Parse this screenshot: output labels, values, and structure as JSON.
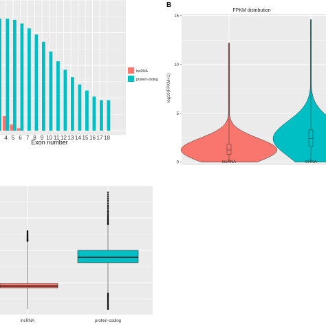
{
  "colors": {
    "lncRNA": "#F8766D",
    "protein_coding": "#00BFC4",
    "panel_bg": "#EBEBEB",
    "grid": "#FFFFFF"
  },
  "chart_data": [
    {
      "type": "bar",
      "xlabel": "Exon number",
      "ylabel": "",
      "categories": [
        "4",
        "5",
        "6",
        "7",
        "8",
        "9",
        "10",
        "11",
        "12",
        "13",
        "14",
        "15",
        "16",
        "17",
        "18"
      ],
      "legend": {
        "placement": "right",
        "entries": [
          "lncRNA",
          "protein-coding"
        ]
      },
      "grid": true,
      "series": [
        {
          "name": "lncRNA",
          "values": [
            0.12,
            0.05,
            0.02,
            null,
            null,
            null,
            null,
            null,
            null,
            null,
            null,
            null,
            null,
            null,
            null
          ]
        },
        {
          "name": "protein-coding",
          "values": [
            0.92,
            0.91,
            0.88,
            0.84,
            0.79,
            0.73,
            0.65,
            0.57,
            0.5,
            0.44,
            0.38,
            0.33,
            0.28,
            0.25,
            0.25
          ]
        }
      ]
    },
    {
      "type": "violin",
      "panel_label": "B",
      "title": "FPKM distribution",
      "ylabel": "log10(FPKM+1)",
      "categories": [
        "lncRNA",
        "mRNA"
      ],
      "ylim": [
        -0.3,
        15.2
      ],
      "yticks": [
        "0",
        "5",
        "10",
        "15"
      ],
      "grid": true,
      "series": [
        {
          "name": "lncRNA",
          "q1": 0.8,
          "median": 1.25,
          "q3": 1.85,
          "whisker_low": 0,
          "whisker_high": 12.2
        },
        {
          "name": "mRNA",
          "q1": 1.6,
          "median": 2.4,
          "q3": 3.3,
          "whisker_low": 0,
          "whisker_high": 14.6
        }
      ]
    },
    {
      "type": "box",
      "categories": [
        "lncRNA",
        "protein-coding"
      ],
      "grid": true,
      "series": [
        {
          "name": "lncRNA",
          "q1": 0.15,
          "median": 0.28,
          "q3": 0.45,
          "whisker_low": -1.2,
          "whisker_high": 3.2,
          "outlier_max": 3.9
        },
        {
          "name": "protein-coding",
          "q1": 1.8,
          "median": 2.15,
          "q3": 2.6,
          "whisker_low": -0.2,
          "whisker_high": 4.3,
          "outlier_max": 6.5
        }
      ]
    }
  ]
}
